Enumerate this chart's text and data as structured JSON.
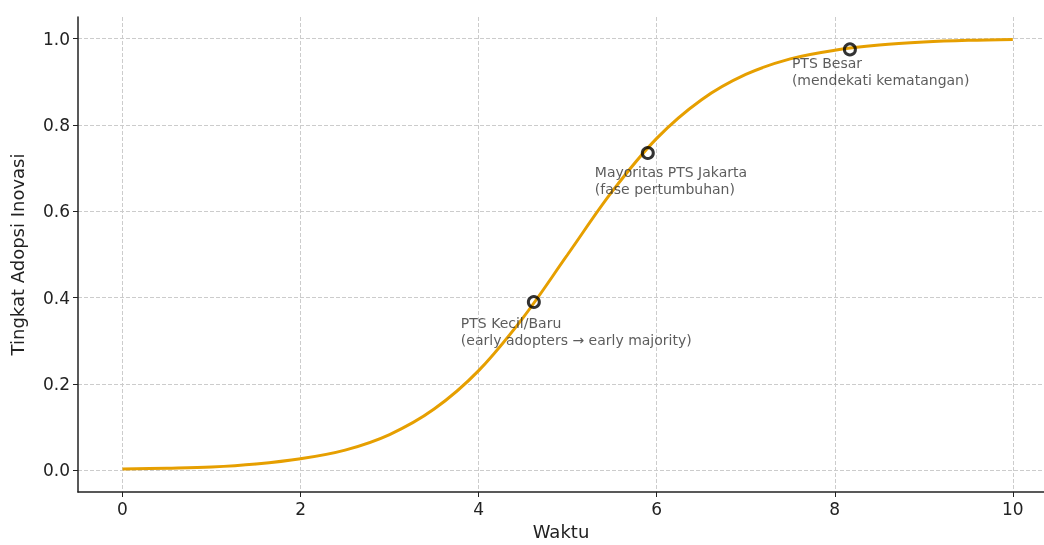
{
  "chart_data": {
    "type": "line",
    "xlabel": "Waktu",
    "ylabel": "Tingkat Adopsi Inovasi",
    "xlim": [
      -0.5,
      10.35
    ],
    "xticks": [
      0,
      2,
      4,
      6,
      8,
      10
    ],
    "ylim": [
      -0.05,
      1.05
    ],
    "yticks": [
      {
        "value": 0,
        "label": "0.0"
      },
      0.2,
      0.4,
      0.6,
      0.8,
      {
        "value": 1,
        "label": "1.0"
      }
    ],
    "grid": true,
    "series": [
      {
        "color": "#e69f00",
        "marker": "none",
        "x": [
          0,
          0.5,
          1,
          1.5,
          2,
          2.5,
          3,
          3.5,
          4,
          4.5,
          5,
          5.5,
          6,
          6.5,
          7,
          7.5,
          8,
          8.5,
          9,
          9.5,
          10
        ],
        "values": [
          0.003,
          0.005,
          0.008,
          0.015,
          0.027,
          0.047,
          0.083,
          0.142,
          0.231,
          0.354,
          0.5,
          0.646,
          0.769,
          0.858,
          0.917,
          0.953,
          0.973,
          0.985,
          0.992,
          0.996,
          0.998
        ]
      },
      {
        "type": "scatter",
        "color": "#000000",
        "marker": "circle",
        "x": [
          4.62,
          5.9,
          8.17
        ],
        "values": [
          0.39,
          0.735,
          0.975
        ]
      }
    ],
    "annotations": [
      {
        "text": "PTS Kecil/Baru\n(early adopters → early majority)",
        "x": 4.62,
        "y": 0.39
      },
      {
        "text": "Mayoritas PTS Jakarta\n(fase pertumbuhan)",
        "x": 5.9,
        "y": 0.735
      },
      {
        "text": "PTS Besar\n(mendekati kematangan)",
        "x": 8.17,
        "y": 0.975
      }
    ]
  }
}
